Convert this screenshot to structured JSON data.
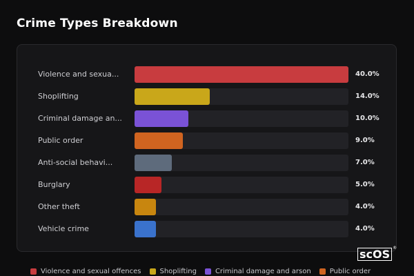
{
  "title": "Crime Types Breakdown",
  "logo_text": "scOS",
  "chart_data": {
    "type": "bar",
    "orientation": "horizontal",
    "categories": [
      "Violence and sexua...",
      "Shoplifting",
      "Criminal damage an...",
      "Public order",
      "Anti-social behavi...",
      "Burglary",
      "Other theft",
      "Vehicle crime"
    ],
    "values": [
      40.0,
      14.0,
      10.0,
      9.0,
      7.0,
      5.0,
      4.0,
      4.0
    ],
    "value_labels": [
      "40.0%",
      "14.0%",
      "10.0%",
      "9.0%",
      "7.0%",
      "5.0%",
      "4.0%",
      "4.0%"
    ],
    "colors": [
      "#c83c3f",
      "#c9a71a",
      "#7a52d6",
      "#d06420",
      "#5e6b7c",
      "#b82626",
      "#c8860f",
      "#3a72cc"
    ],
    "xlim": [
      0,
      40
    ],
    "track_color": "#222226",
    "legend_position": "bottom",
    "legend": [
      {
        "label": "Violence and sexual offences",
        "color": "#c83c3f"
      },
      {
        "label": "Shoplifting",
        "color": "#c9a71a"
      },
      {
        "label": "Criminal damage and arson",
        "color": "#7a52d6"
      },
      {
        "label": "Public order",
        "color": "#d06420"
      }
    ]
  }
}
